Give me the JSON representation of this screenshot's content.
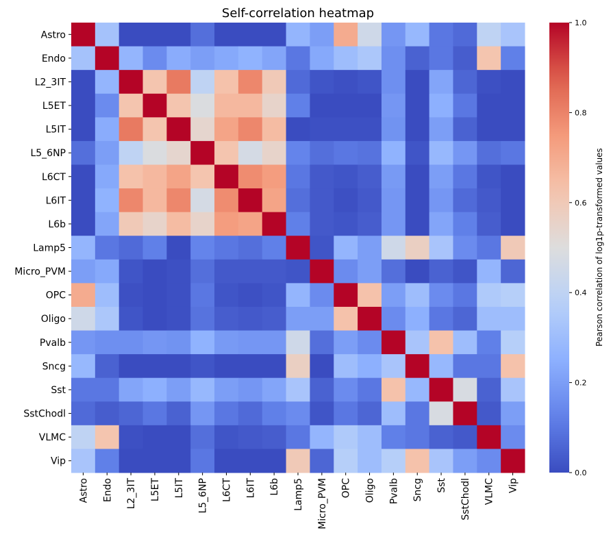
{
  "chart_data": {
    "type": "heatmap",
    "title": "Self-correlation heatmap",
    "xlabel": "",
    "ylabel": "",
    "colormap": "coolwarm",
    "vmin": 0.0,
    "vmax": 1.0,
    "colorbar": {
      "label": "Pearson correlation of log1p-transformed values",
      "ticks": [
        0.0,
        0.2,
        0.4,
        0.6,
        0.8,
        1.0
      ],
      "tick_labels": [
        "0.0",
        "0.2",
        "0.4",
        "0.6",
        "0.8",
        "1.0"
      ],
      "placement": "right"
    },
    "labels": [
      "Astro",
      "Endo",
      "L2_3IT",
      "L5ET",
      "L5IT",
      "L5_6NP",
      "L6CT",
      "L6IT",
      "L6b",
      "Lamp5",
      "Micro_PVM",
      "OPC",
      "Oligo",
      "Pvalb",
      "Sncg",
      "Sst",
      "SstChodl",
      "VLMC",
      "Vip"
    ],
    "upper_triangle": [
      [
        0.32,
        0,
        0,
        0,
        0.08,
        0,
        0,
        0,
        0.27,
        0.2,
        0.7,
        0.45,
        0.18,
        0.28,
        0.1,
        0.07,
        0.4,
        0.33
      ],
      [
        0.27,
        0.15,
        0.24,
        0.2,
        0.23,
        0.26,
        0.22,
        0.1,
        0.23,
        0.3,
        0.34,
        0.16,
        0.05,
        0.1,
        0.04,
        0.62,
        0.12
      ],
      [
        0.62,
        0.82,
        0.4,
        0.63,
        0.79,
        0.6,
        0.07,
        0.02,
        0.01,
        0.02,
        0.16,
        0,
        0.22,
        0.06,
        0.01,
        0
      ],
      [
        0.62,
        0.49,
        0.66,
        0.66,
        0.55,
        0.12,
        0,
        0,
        0,
        0.18,
        0,
        0.25,
        0.1,
        0,
        0
      ],
      [
        0.54,
        0.72,
        0.79,
        0.65,
        0,
        0.01,
        0.01,
        0.01,
        0.17,
        0,
        0.2,
        0.05,
        0,
        0
      ],
      [
        0.62,
        0.47,
        0.55,
        0.13,
        0.08,
        0.1,
        0.09,
        0.26,
        0.02,
        0.28,
        0.18,
        0.08,
        0.1
      ],
      [
        0.78,
        0.74,
        0.1,
        0.03,
        0.02,
        0.04,
        0.19,
        0,
        0.2,
        0.1,
        0.02,
        0
      ],
      [
        0.72,
        0.08,
        0.03,
        0.01,
        0.03,
        0.18,
        0,
        0.18,
        0.07,
        0.03,
        0
      ],
      [
        0.12,
        0.03,
        0.02,
        0.04,
        0.18,
        0,
        0.22,
        0.12,
        0.04,
        0
      ],
      [
        0.02,
        0.27,
        0.2,
        0.45,
        0.57,
        0.33,
        0.15,
        0.1,
        0.6
      ],
      [
        0.15,
        0.2,
        0.08,
        0,
        0.05,
        0.02,
        0.27,
        0.06
      ],
      [
        0.63,
        0.2,
        0.3,
        0.15,
        0.1,
        0.35,
        0.37
      ],
      [
        0.15,
        0.25,
        0.1,
        0.06,
        0.3,
        0.3
      ],
      [
        0.33,
        0.63,
        0.3,
        0.12,
        0.37
      ],
      [
        0.28,
        0.1,
        0.1,
        0.63
      ],
      [
        0.48,
        0.05,
        0.33
      ],
      [
        0.03,
        0.2
      ],
      [
        0.15
      ]
    ],
    "diagonal": 1.0,
    "symmetric": true
  }
}
